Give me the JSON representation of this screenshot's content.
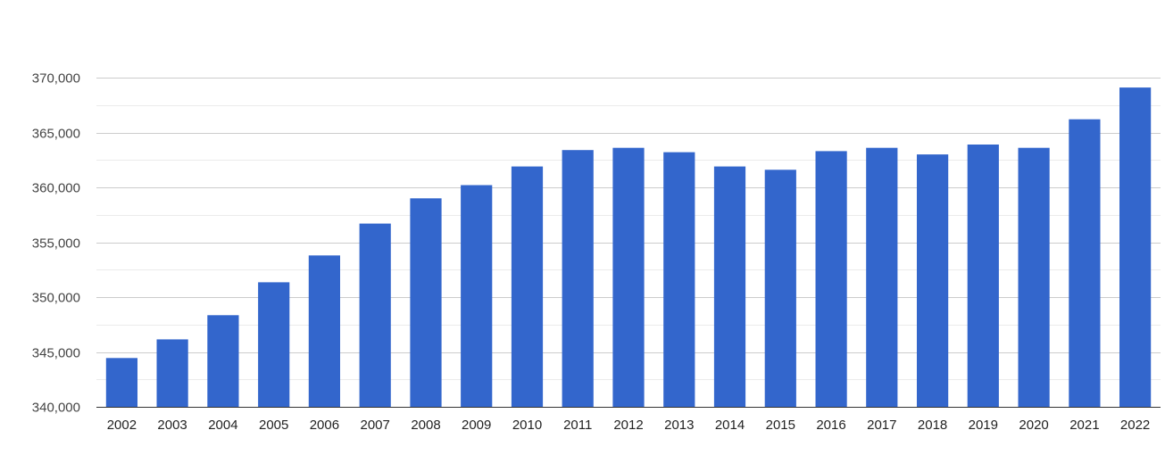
{
  "chart_data": {
    "type": "bar",
    "title": "",
    "xlabel": "",
    "ylabel": "",
    "categories": [
      "2002",
      "2003",
      "2004",
      "2005",
      "2006",
      "2007",
      "2008",
      "2009",
      "2010",
      "2011",
      "2012",
      "2013",
      "2014",
      "2015",
      "2016",
      "2017",
      "2018",
      "2019",
      "2020",
      "2021",
      "2022"
    ],
    "values": [
      344450,
      346150,
      348350,
      351350,
      353800,
      356700,
      359000,
      360200,
      361900,
      363400,
      363600,
      363200,
      361900,
      361600,
      363300,
      363600,
      363000,
      363900,
      363600,
      366200,
      369100
    ],
    "ylim": [
      340000,
      370000
    ],
    "yticks": [
      340000,
      345000,
      350000,
      355000,
      360000,
      365000,
      370000
    ],
    "ytick_labels": [
      "340,000",
      "345,000",
      "350,000",
      "355,000",
      "360,000",
      "365,000",
      "370,000"
    ],
    "minor_gridlines": true,
    "grid": true,
    "legend": "none",
    "bar_color": "#3366cc"
  }
}
